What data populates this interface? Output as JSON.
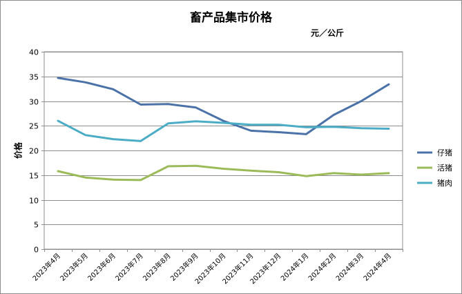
{
  "chart_data": {
    "type": "line",
    "title": "畜产品集市价格",
    "unit": "元／公斤",
    "ylabel": "价格",
    "xlabel": "",
    "ylim": [
      0,
      40
    ],
    "yticks": [
      0,
      5,
      10,
      15,
      20,
      25,
      30,
      35,
      40
    ],
    "grid": "horizontal",
    "legend_position": "right",
    "categories": [
      "2023年4月",
      "2023年5月",
      "2023年6月",
      "2023年7月",
      "2023年8月",
      "2023年9月",
      "2023年10月",
      "2023年11月",
      "2023年12月",
      "2024年1月",
      "2024年2月",
      "2024年3月",
      "2024年4月"
    ],
    "series": [
      {
        "name": "仔猪",
        "color": "#4a72a8",
        "values": [
          34.7,
          33.8,
          32.4,
          29.3,
          29.4,
          28.7,
          26.0,
          24.0,
          23.7,
          23.3,
          27.2,
          30.0,
          33.4
        ]
      },
      {
        "name": "活猪",
        "color": "#9bbb59",
        "values": [
          15.8,
          14.5,
          14.1,
          14.0,
          16.8,
          16.9,
          16.3,
          15.9,
          15.6,
          14.8,
          15.4,
          15.1,
          15.4
        ]
      },
      {
        "name": "猪肉",
        "color": "#4bacc6",
        "values": [
          26.0,
          23.1,
          22.3,
          21.9,
          25.5,
          25.9,
          25.6,
          25.2,
          25.2,
          24.7,
          24.8,
          24.5,
          24.4
        ]
      }
    ]
  }
}
